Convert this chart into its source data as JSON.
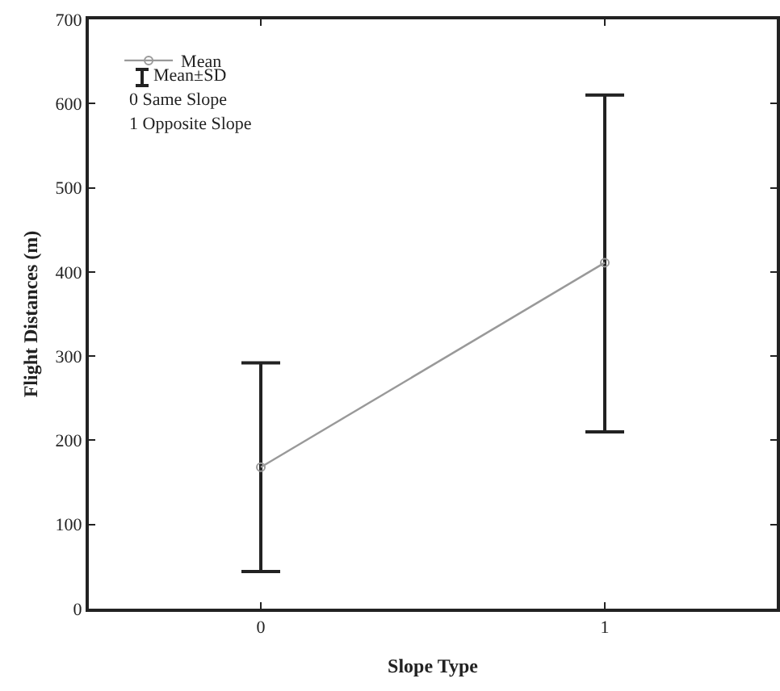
{
  "chart_data": {
    "type": "line",
    "xlabel": "Slope Type",
    "ylabel": "Flight Distances (m)",
    "x": [
      0,
      1
    ],
    "xlim": [
      -0.5,
      1.5
    ],
    "xticks": [
      0,
      1
    ],
    "ylim": [
      0,
      700
    ],
    "yticks": [
      0,
      100,
      200,
      300,
      400,
      500,
      600,
      700
    ],
    "series": [
      {
        "name": "Mean",
        "color": "#999999",
        "values": [
          168,
          411
        ],
        "errors": [
          [
            44,
            292
          ],
          [
            210,
            610
          ]
        ]
      }
    ],
    "annotations": [
      "Mean±SD",
      "0 Same Slope",
      "1 Opposite Slope"
    ],
    "legend": "top left",
    "marker": "circle",
    "line_style": "solid",
    "grid": false
  }
}
